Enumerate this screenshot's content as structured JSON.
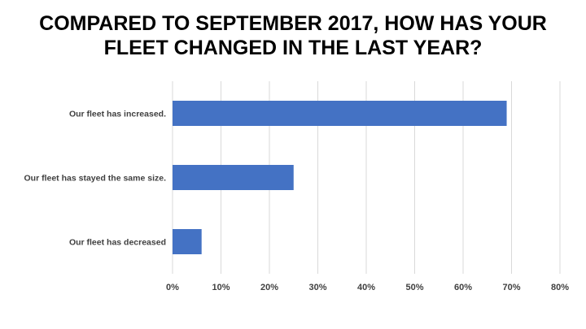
{
  "chart_data": {
    "type": "bar",
    "orientation": "horizontal",
    "title_lines": [
      "COMPARED TO SEPTEMBER 2017, HOW HAS YOUR",
      "FLEET CHANGED IN THE LAST YEAR?"
    ],
    "categories": [
      "Our fleet has increased.",
      "Our fleet has stayed the same size.",
      "Our fleet has decreased"
    ],
    "values": [
      69,
      25,
      6
    ],
    "unit": "%",
    "xlim": [
      0,
      80
    ],
    "x_ticks": [
      0,
      10,
      20,
      30,
      40,
      50,
      60,
      70,
      80
    ],
    "x_tick_labels": [
      "0%",
      "10%",
      "20%",
      "30%",
      "40%",
      "50%",
      "60%",
      "70%",
      "80%"
    ],
    "grid": "vertical",
    "legend": "none",
    "colors": {
      "bar": "#4472c4",
      "grid": "#d9d9d9",
      "label_text": "#404040",
      "title_text": "#000000"
    }
  }
}
